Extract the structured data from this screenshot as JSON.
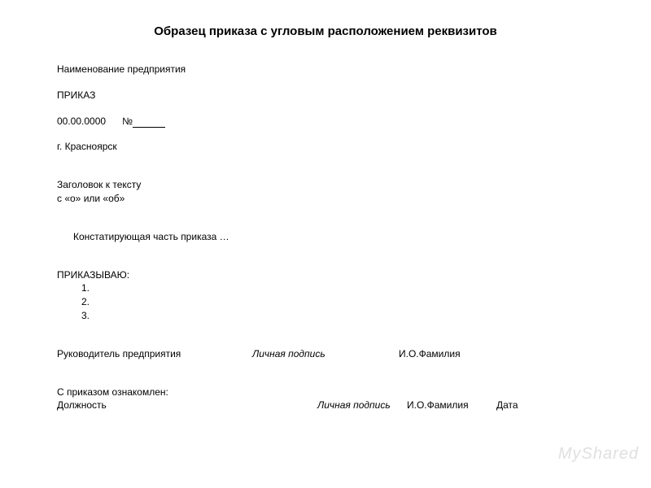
{
  "document": {
    "title": "Образец приказа с угловым   расположением реквизитов",
    "org_name": "Наименование предприятия",
    "doc_type": "ПРИКАЗ",
    "date": "00.00.0000",
    "number_prefix": "№",
    "city": "г. Красноярск",
    "heading_line1": "Заголовок к тексту",
    "heading_line2": "с «о» или «об»",
    "recital": "Констатирующая часть приказа …",
    "order_word": "ПРИКАЗЫВАЮ:",
    "items": [
      "1.",
      "2.",
      "3."
    ],
    "signature": {
      "position": "Руководитель предприятия",
      "sign_label": "Личная подпись",
      "name": "И.О.Фамилия"
    },
    "acknowledgment": {
      "intro": "С приказом  ознакомлен:",
      "position": "Должность",
      "sign_label": "Личная подпись",
      "name": "И.О.Фамилия",
      "date_label": "Дата"
    }
  },
  "style": {
    "background_color": "#ffffff",
    "text_color": "#000000",
    "title_fontsize": 15,
    "body_fontsize": 12,
    "watermark_color": "#e0e0e0"
  },
  "watermark": "MyShared"
}
